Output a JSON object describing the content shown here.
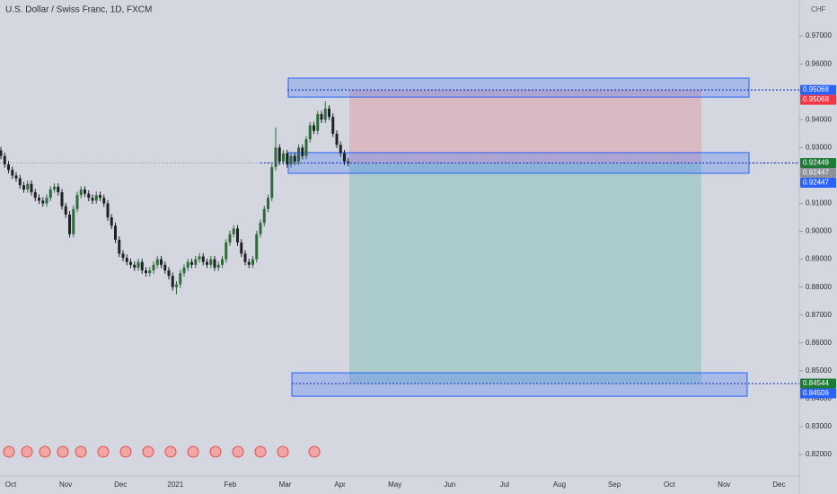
{
  "chart_data": {
    "type": "candlestick",
    "title": "U.S. Dollar / Swiss Franc, 1D, FXCM",
    "currency": "CHF",
    "categories": [
      "Oct",
      "Nov",
      "Dec",
      "2021",
      "Feb",
      "Mar",
      "Apr",
      "May",
      "Jun",
      "Jul",
      "Aug",
      "Sep",
      "Oct",
      "Nov",
      "Dec"
    ],
    "ylim": [
      0.8123,
      0.9829
    ],
    "yticks": [
      {
        "value": 0.82,
        "label": "0.82000"
      },
      {
        "value": 0.83,
        "label": "0.83000"
      },
      {
        "value": 0.84,
        "label": "0.84000"
      },
      {
        "value": 0.85,
        "label": "0.85000"
      },
      {
        "value": 0.86,
        "label": "0.86000"
      },
      {
        "value": 0.87,
        "label": "0.87000"
      },
      {
        "value": 0.88,
        "label": "0.88000"
      },
      {
        "value": 0.89,
        "label": "0.89000"
      },
      {
        "value": 0.9,
        "label": "0.90000"
      },
      {
        "value": 0.91,
        "label": "0.91000"
      },
      {
        "value": 0.92,
        "label": "0.92000"
      },
      {
        "value": 0.93,
        "label": "0.93000"
      },
      {
        "value": 0.94,
        "label": "0.94000"
      },
      {
        "value": 0.95,
        "label": "0.95000"
      },
      {
        "value": 0.96,
        "label": "0.96000"
      },
      {
        "value": 0.97,
        "label": "0.97000"
      }
    ],
    "up_color": "#2f6b3a",
    "down_color": "#1f2226",
    "candles": [
      [
        0.929,
        0.9302,
        0.9258,
        0.927
      ],
      [
        0.927,
        0.9282,
        0.9228,
        0.924
      ],
      [
        0.924,
        0.9252,
        0.9208,
        0.922
      ],
      [
        0.922,
        0.9232,
        0.9188,
        0.92
      ],
      [
        0.92,
        0.9212,
        0.9178,
        0.919
      ],
      [
        0.919,
        0.9202,
        0.9153,
        0.9165
      ],
      [
        0.9165,
        0.9177,
        0.9138,
        0.915
      ],
      [
        0.915,
        0.9182,
        0.9138,
        0.917
      ],
      [
        0.917,
        0.9182,
        0.9128,
        0.914
      ],
      [
        0.914,
        0.9152,
        0.9108,
        0.912
      ],
      [
        0.912,
        0.9132,
        0.9098,
        0.911
      ],
      [
        0.911,
        0.9122,
        0.9088,
        0.91
      ],
      [
        0.91,
        0.9132,
        0.9088,
        0.912
      ],
      [
        0.912,
        0.9162,
        0.9108,
        0.915
      ],
      [
        0.915,
        0.9172,
        0.9138,
        0.916
      ],
      [
        0.916,
        0.9172,
        0.9128,
        0.914
      ],
      [
        0.914,
        0.9152,
        0.9078,
        0.909
      ],
      [
        0.909,
        0.9102,
        0.9048,
        0.906
      ],
      [
        0.906,
        0.9072,
        0.8978,
        0.899
      ],
      [
        0.899,
        0.9092,
        0.8978,
        0.908
      ],
      [
        0.908,
        0.9142,
        0.9068,
        0.913
      ],
      [
        0.913,
        0.9162,
        0.9118,
        0.915
      ],
      [
        0.915,
        0.9162,
        0.9123,
        0.9135
      ],
      [
        0.9135,
        0.9147,
        0.9108,
        0.912
      ],
      [
        0.912,
        0.9132,
        0.9098,
        0.911
      ],
      [
        0.911,
        0.9142,
        0.9098,
        0.913
      ],
      [
        0.913,
        0.9142,
        0.9108,
        0.912
      ],
      [
        0.912,
        0.9132,
        0.9088,
        0.91
      ],
      [
        0.91,
        0.9112,
        0.9038,
        0.905
      ],
      [
        0.905,
        0.9062,
        0.9008,
        0.902
      ],
      [
        0.902,
        0.9032,
        0.8958,
        0.897
      ],
      [
        0.897,
        0.8982,
        0.8908,
        0.892
      ],
      [
        0.892,
        0.8932,
        0.8893,
        0.8905
      ],
      [
        0.8905,
        0.8917,
        0.8878,
        0.889
      ],
      [
        0.889,
        0.8902,
        0.8868,
        0.888
      ],
      [
        0.888,
        0.8892,
        0.8858,
        0.887
      ],
      [
        0.887,
        0.8902,
        0.8858,
        0.889
      ],
      [
        0.889,
        0.8902,
        0.8848,
        0.886
      ],
      [
        0.886,
        0.8872,
        0.8838,
        0.885
      ],
      [
        0.885,
        0.8872,
        0.8838,
        0.886
      ],
      [
        0.886,
        0.8892,
        0.8848,
        0.888
      ],
      [
        0.888,
        0.8912,
        0.8868,
        0.89
      ],
      [
        0.89,
        0.8912,
        0.8868,
        0.888
      ],
      [
        0.888,
        0.8892,
        0.8848,
        0.886
      ],
      [
        0.886,
        0.8872,
        0.8828,
        0.884
      ],
      [
        0.884,
        0.8852,
        0.8788,
        0.88
      ],
      [
        0.88,
        0.8822,
        0.8775,
        0.881
      ],
      [
        0.881,
        0.8862,
        0.8798,
        0.885
      ],
      [
        0.885,
        0.8882,
        0.8838,
        0.887
      ],
      [
        0.887,
        0.8902,
        0.8858,
        0.889
      ],
      [
        0.889,
        0.8902,
        0.8868,
        0.888
      ],
      [
        0.888,
        0.8912,
        0.8868,
        0.89
      ],
      [
        0.89,
        0.8922,
        0.8888,
        0.891
      ],
      [
        0.891,
        0.8922,
        0.8878,
        0.889
      ],
      [
        0.889,
        0.8902,
        0.8868,
        0.888
      ],
      [
        0.888,
        0.8912,
        0.8868,
        0.89
      ],
      [
        0.89,
        0.8912,
        0.8858,
        0.887
      ],
      [
        0.887,
        0.8892,
        0.8858,
        0.888
      ],
      [
        0.888,
        0.8912,
        0.8868,
        0.89
      ],
      [
        0.89,
        0.8972,
        0.8888,
        0.896
      ],
      [
        0.896,
        0.9002,
        0.8948,
        0.899
      ],
      [
        0.899,
        0.9022,
        0.8978,
        0.901
      ],
      [
        0.901,
        0.9022,
        0.8948,
        0.896
      ],
      [
        0.896,
        0.8972,
        0.8908,
        0.892
      ],
      [
        0.892,
        0.8932,
        0.8878,
        0.889
      ],
      [
        0.889,
        0.8902,
        0.8868,
        0.888
      ],
      [
        0.888,
        0.8912,
        0.8868,
        0.89
      ],
      [
        0.89,
        0.9002,
        0.8888,
        0.899
      ],
      [
        0.899,
        0.9042,
        0.8978,
        0.903
      ],
      [
        0.903,
        0.9092,
        0.9018,
        0.908
      ],
      [
        0.908,
        0.9132,
        0.9068,
        0.912
      ],
      [
        0.912,
        0.9242,
        0.9108,
        0.923
      ],
      [
        0.923,
        0.9372,
        0.9218,
        0.93
      ],
      [
        0.93,
        0.9312,
        0.9238,
        0.925
      ],
      [
        0.925,
        0.9292,
        0.9238,
        0.928
      ],
      [
        0.928,
        0.9292,
        0.9228,
        0.924
      ],
      [
        0.924,
        0.9282,
        0.9228,
        0.927
      ],
      [
        0.927,
        0.9282,
        0.9238,
        0.925
      ],
      [
        0.925,
        0.9312,
        0.9238,
        0.93
      ],
      [
        0.93,
        0.9312,
        0.9258,
        0.927
      ],
      [
        0.927,
        0.9342,
        0.9258,
        0.933
      ],
      [
        0.933,
        0.9392,
        0.9318,
        0.938
      ],
      [
        0.938,
        0.9392,
        0.9348,
        0.936
      ],
      [
        0.936,
        0.9432,
        0.9348,
        0.942
      ],
      [
        0.942,
        0.9432,
        0.9388,
        0.94
      ],
      [
        0.94,
        0.9465,
        0.9388,
        0.944
      ],
      [
        0.944,
        0.9452,
        0.9398,
        0.941
      ],
      [
        0.941,
        0.9422,
        0.9338,
        0.935
      ],
      [
        0.935,
        0.9362,
        0.9298,
        0.931
      ],
      [
        0.931,
        0.9322,
        0.9268,
        0.928
      ],
      [
        0.928,
        0.9292,
        0.9238,
        0.925
      ],
      [
        0.925,
        0.9262,
        0.9233,
        0.9245
      ]
    ],
    "zones": [
      [
        0.9549,
        0.9481
      ],
      [
        0.9282,
        0.9208
      ],
      [
        0.8493,
        0.8409
      ]
    ],
    "position": {
      "stop": 0.95068,
      "entry": 0.92449,
      "target": 0.84544
    },
    "price_labels": [
      {
        "value": 0.95068,
        "color": "#2962ff"
      },
      {
        "value": 0.95068,
        "color": "#f23645"
      },
      {
        "value": 0.92449,
        "color": "#1e7a34"
      },
      {
        "value": 0.92447,
        "color": "#8e929b"
      },
      {
        "value": 0.92447,
        "color": "#2962ff"
      },
      {
        "value": 0.84544,
        "color": "#1e7a34"
      },
      {
        "value": 0.84506,
        "color": "#2962ff"
      }
    ]
  }
}
